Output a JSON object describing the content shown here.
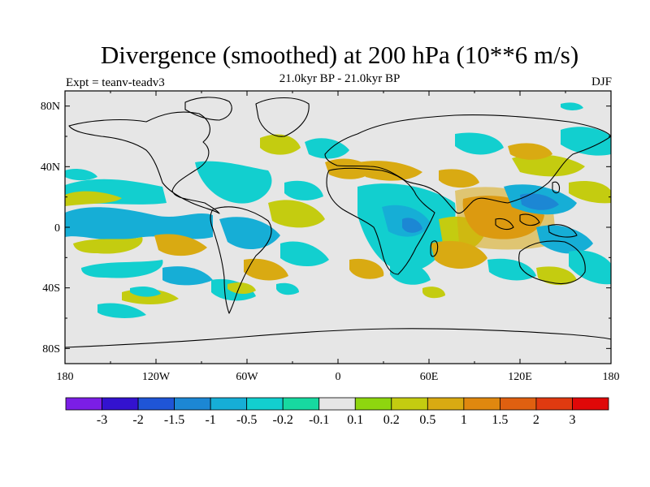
{
  "title": "Divergence (smoothed) at 200 hPa (10**6 m/s)",
  "subtitle": "21.0kyr BP - 21.0kyr BP",
  "experiment": "Expt = teanv-teadv3",
  "season": "DJF",
  "lat_labels": [
    "80N",
    "40N",
    "0",
    "40S",
    "80S"
  ],
  "lon_labels": [
    "180",
    "120W",
    "60W",
    "0",
    "60E",
    "120E",
    "180"
  ],
  "colorbar": {
    "colors": [
      "#7b1ee6",
      "#3312cf",
      "#1f55d6",
      "#1c87d4",
      "#16aed6",
      "#12cfcf",
      "#17d9a0",
      "#e6e6e6",
      "#8ed60f",
      "#c4cc10",
      "#d9aa12",
      "#e0880f",
      "#e06010",
      "#e03a10",
      "#e00808"
    ],
    "labels": [
      "-3",
      "-2",
      "-1.5",
      "-1",
      "-0.5",
      "-0.2",
      "-0.1",
      "0.1",
      "0.2",
      "0.5",
      "1",
      "1.5",
      "2",
      "3"
    ]
  }
}
